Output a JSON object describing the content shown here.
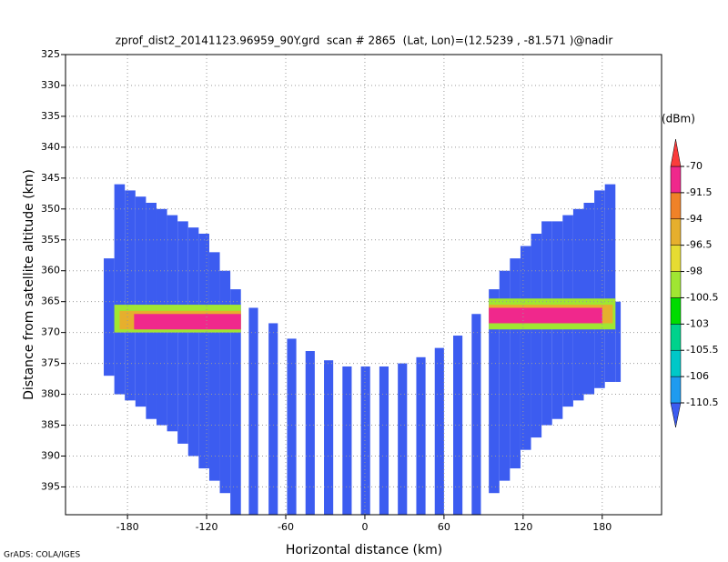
{
  "chart_data": {
    "type": "curtain",
    "title": "zprof_dist2_20141123.96959_90Y.grd  scan # 2865  (Lat, Lon)=(12.5239 , -81.571 )@nadir",
    "xlabel": "Horizontal distance (km)",
    "ylabel": "Distance from satellite altitude (km)",
    "footer": "GrADS: COLA/IGES",
    "xlim": [
      -227,
      225
    ],
    "xticks": [
      -180,
      -120,
      -60,
      0,
      60,
      120,
      180
    ],
    "ylim": [
      325,
      399.5
    ],
    "yticks": [
      325,
      330,
      335,
      340,
      345,
      350,
      355,
      360,
      365,
      370,
      375,
      380,
      385,
      390,
      395
    ],
    "grid": true,
    "colorbar": {
      "unit": "(dBm)",
      "levels": [
        -110.5,
        -106,
        -105.5,
        -103,
        -100.5,
        -98,
        -96.5,
        -94,
        -91.5,
        -70
      ],
      "colors": [
        "#3c5cf0",
        "#1e9bf0",
        "#00c8c8",
        "#00d28c",
        "#00dc00",
        "#a0e632",
        "#e6dc32",
        "#e6af2d",
        "#f08228",
        "#f0288c",
        "#fa3c3c"
      ]
    },
    "echoes": [
      {
        "x0": -198,
        "x1": -190,
        "top": 358,
        "bottom": 377,
        "value": -112
      },
      {
        "x0": -190,
        "x1": -182,
        "top": 346,
        "bottom": 380,
        "value": -112
      },
      {
        "x0": -182,
        "x1": -174,
        "top": 347,
        "bottom": 381,
        "value": -112
      },
      {
        "x0": -174,
        "x1": -166,
        "top": 348,
        "bottom": 382,
        "value": -112
      },
      {
        "x0": -166,
        "x1": -158,
        "top": 349,
        "bottom": 384,
        "value": -112
      },
      {
        "x0": -158,
        "x1": -150,
        "top": 350,
        "bottom": 385,
        "value": -112
      },
      {
        "x0": -150,
        "x1": -142,
        "top": 351,
        "bottom": 386,
        "value": -112
      },
      {
        "x0": -142,
        "x1": -134,
        "top": 352,
        "bottom": 388,
        "value": -112
      },
      {
        "x0": -134,
        "x1": -126,
        "top": 353,
        "bottom": 390,
        "value": -112
      },
      {
        "x0": -126,
        "x1": -118,
        "top": 354,
        "bottom": 392,
        "value": -112
      },
      {
        "x0": -118,
        "x1": -110,
        "top": 357,
        "bottom": 394,
        "value": -112
      },
      {
        "x0": -110,
        "x1": -102,
        "top": 360,
        "bottom": 396,
        "value": -112
      },
      {
        "x0": -102,
        "x1": -94,
        "top": 363,
        "bottom": 399.5,
        "value": -112
      },
      {
        "x0": -88,
        "x1": -81,
        "top": 366,
        "bottom": 399.5,
        "value": -112
      },
      {
        "x0": -73,
        "x1": -66,
        "top": 368.5,
        "bottom": 399.5,
        "value": -112
      },
      {
        "x0": -59,
        "x1": -52,
        "top": 371,
        "bottom": 399.5,
        "value": -112
      },
      {
        "x0": -45,
        "x1": -38,
        "top": 373,
        "bottom": 399.5,
        "value": -112
      },
      {
        "x0": -31,
        "x1": -24,
        "top": 374.5,
        "bottom": 399.5,
        "value": -112
      },
      {
        "x0": -17,
        "x1": -10,
        "top": 375.5,
        "bottom": 399.5,
        "value": -112
      },
      {
        "x0": -3,
        "x1": 4,
        "top": 375.5,
        "bottom": 399.5,
        "value": -112
      },
      {
        "x0": 11,
        "x1": 18,
        "top": 375.5,
        "bottom": 399.5,
        "value": -112
      },
      {
        "x0": 25,
        "x1": 32,
        "top": 375,
        "bottom": 399.5,
        "value": -112
      },
      {
        "x0": 39,
        "x1": 46,
        "top": 374,
        "bottom": 399.5,
        "value": -112
      },
      {
        "x0": 53,
        "x1": 60,
        "top": 372.5,
        "bottom": 399.5,
        "value": -112
      },
      {
        "x0": 67,
        "x1": 74,
        "top": 370.5,
        "bottom": 399.5,
        "value": -112
      },
      {
        "x0": 81,
        "x1": 88,
        "top": 367,
        "bottom": 399.5,
        "value": -112
      },
      {
        "x0": 94,
        "x1": 102,
        "top": 363,
        "bottom": 396,
        "value": -112
      },
      {
        "x0": 102,
        "x1": 110,
        "top": 360,
        "bottom": 394,
        "value": -112
      },
      {
        "x0": 110,
        "x1": 118,
        "top": 358,
        "bottom": 392,
        "value": -112
      },
      {
        "x0": 118,
        "x1": 126,
        "top": 356,
        "bottom": 389,
        "value": -112
      },
      {
        "x0": 126,
        "x1": 134,
        "top": 354,
        "bottom": 387,
        "value": -112
      },
      {
        "x0": 134,
        "x1": 142,
        "top": 352,
        "bottom": 385,
        "value": -112
      },
      {
        "x0": 142,
        "x1": 150,
        "top": 352,
        "bottom": 384,
        "value": -112
      },
      {
        "x0": 150,
        "x1": 158,
        "top": 351,
        "bottom": 382,
        "value": -112
      },
      {
        "x0": 158,
        "x1": 166,
        "top": 350,
        "bottom": 381,
        "value": -112
      },
      {
        "x0": 166,
        "x1": 174,
        "top": 349,
        "bottom": 380,
        "value": -112
      },
      {
        "x0": 174,
        "x1": 182,
        "top": 347,
        "bottom": 379,
        "value": -112
      },
      {
        "x0": 182,
        "x1": 190,
        "top": 346,
        "bottom": 378,
        "value": -112
      },
      {
        "x0": 190,
        "x1": 194,
        "top": 365,
        "bottom": 378,
        "value": -112
      },
      {
        "x0": -190,
        "x1": -94,
        "top": 365.5,
        "bottom": 370,
        "value": -99
      },
      {
        "x0": -186,
        "x1": -94,
        "top": 366.5,
        "bottom": 369.5,
        "value": -95
      },
      {
        "x0": -175,
        "x1": -94,
        "top": 367,
        "bottom": 369.5,
        "value": -85
      },
      {
        "x0": 94,
        "x1": 190,
        "top": 364.5,
        "bottom": 369.5,
        "value": -99
      },
      {
        "x0": 94,
        "x1": 188,
        "top": 365.5,
        "bottom": 368.5,
        "value": -95
      },
      {
        "x0": 94,
        "x1": 180,
        "top": 366,
        "bottom": 368.5,
        "value": -85
      }
    ]
  }
}
